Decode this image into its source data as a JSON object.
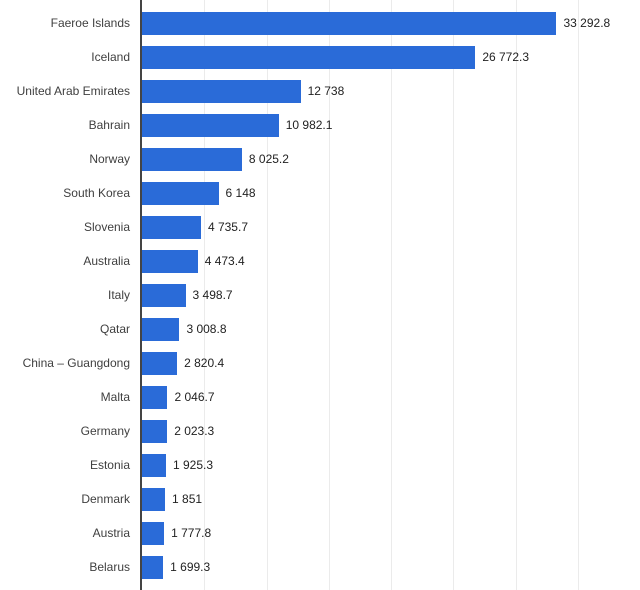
{
  "chart_data": {
    "type": "bar",
    "orientation": "horizontal",
    "title": "",
    "xlabel": "",
    "ylabel": "",
    "xlim": [
      0,
      40000
    ],
    "gridline_interval": 5000,
    "grid": "vertical-light",
    "legend": "none",
    "bar_color": "#2a6bd8",
    "axis_line_color": "#444444",
    "categories": [
      "Faeroe Islands",
      "Iceland",
      "United Arab Emirates",
      "Bahrain",
      "Norway",
      "South Korea",
      "Slovenia",
      "Australia",
      "Italy",
      "Qatar",
      "China – Guangdong",
      "Malta",
      "Germany",
      "Estonia",
      "Denmark",
      "Austria",
      "Belarus"
    ],
    "values": [
      33292.8,
      26772.3,
      12738,
      10982.1,
      8025.2,
      6148,
      4735.7,
      4473.4,
      3498.7,
      3008.8,
      2820.4,
      2046.7,
      2023.3,
      1925.3,
      1851,
      1777.8,
      1699.3
    ],
    "value_labels": [
      "33 292.8",
      "26 772.3",
      "12 738",
      "10 982.1",
      "8 025.2",
      "6 148",
      "4 735.7",
      "4 473.4",
      "3 498.7",
      "3 008.8",
      "2 820.4",
      "2 046.7",
      "2 023.3",
      "1 925.3",
      "1 851",
      "1 777.8",
      "1 699.3"
    ]
  }
}
